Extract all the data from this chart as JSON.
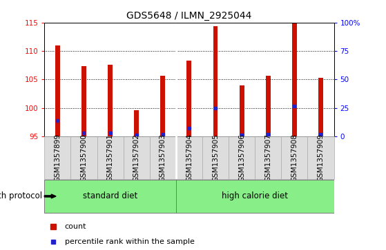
{
  "title": "GDS5648 / ILMN_2925044",
  "samples": [
    "GSM1357899",
    "GSM1357900",
    "GSM1357901",
    "GSM1357902",
    "GSM1357903",
    "GSM1357904",
    "GSM1357905",
    "GSM1357906",
    "GSM1357907",
    "GSM1357908",
    "GSM1357909"
  ],
  "count_values": [
    111.0,
    107.3,
    107.6,
    99.6,
    105.6,
    108.3,
    114.4,
    103.9,
    105.6,
    115.0,
    105.3
  ],
  "percentile_values": [
    97.8,
    95.6,
    95.6,
    95.2,
    95.3,
    96.4,
    100.0,
    95.2,
    95.3,
    100.3,
    95.3
  ],
  "ymin": 95,
  "ymax": 115,
  "yticks": [
    95,
    100,
    105,
    110,
    115
  ],
  "right_yticks": [
    0,
    25,
    50,
    75,
    100
  ],
  "right_ytick_labels": [
    "0",
    "25",
    "50",
    "75",
    "100%"
  ],
  "bar_color": "#CC1100",
  "percentile_color": "#2222CC",
  "grid_color": "#000000",
  "standard_diet_label": "standard diet",
  "high_calorie_label": "high calorie diet",
  "protocol_label": "growth protocol",
  "legend_count_label": "count",
  "legend_percentile_label": "percentile rank within the sample",
  "bg_color": "#DDDDDD",
  "group_bg_color": "#88EE88",
  "bar_width": 0.18,
  "title_fontsize": 10,
  "tick_label_fontsize": 7.5,
  "group_label_fontsize": 8.5,
  "legend_fontsize": 8
}
